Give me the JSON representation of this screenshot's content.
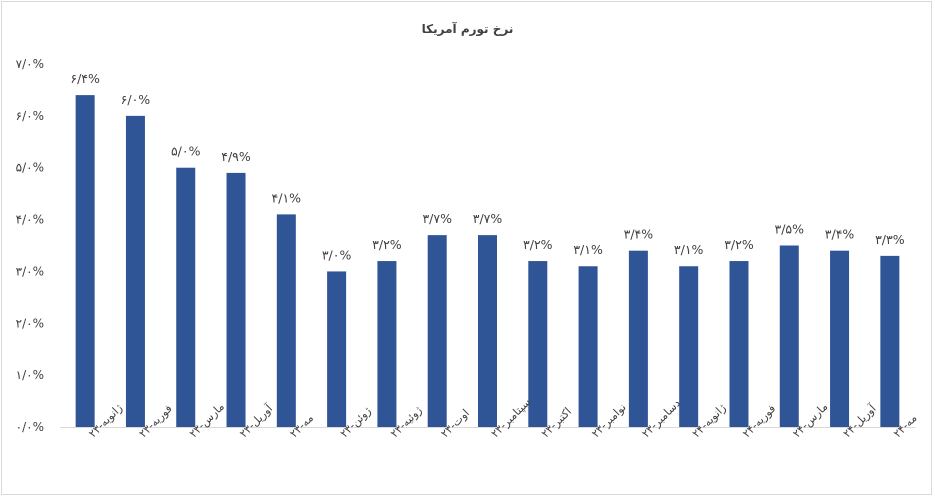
{
  "chart_data": {
    "type": "bar",
    "title": "نرخ تورم آمریکا",
    "xlabel": "",
    "ylabel": "",
    "ylim": [
      0,
      7
    ],
    "y_tick_labels": [
      "۰/۰%",
      "۱/۰%",
      "۲/۰%",
      "۳/۰%",
      "۴/۰%",
      "۵/۰%",
      "۶/۰%",
      "۷/۰%"
    ],
    "grid": false,
    "bar_color": "#2F5597",
    "categories": [
      "ژانویه-۲۳",
      "فوریه-۲۳",
      "مارس-۲۳",
      "آوریل-۲۳",
      "مه-۲۳",
      "ژوئن-۲۳",
      "ژوئیه-۲۳",
      "اوت-۲۳",
      "سپتامبر-۲۳",
      "اکتبر-۲۳",
      "نوامبر-۲۳",
      "دسامبر-۲۳",
      "ژانویه-۲۴",
      "فوریه-۲۴",
      "مارس-۲۴",
      "آوریل-۲۴",
      "مه-۲۴"
    ],
    "values": [
      6.4,
      6.0,
      5.0,
      4.9,
      4.1,
      3.0,
      3.2,
      3.7,
      3.7,
      3.2,
      3.1,
      3.4,
      3.1,
      3.2,
      3.5,
      3.4,
      3.3
    ],
    "data_labels": [
      "۶/۴%",
      "۶/۰%",
      "۵/۰%",
      "۴/۹%",
      "۴/۱%",
      "۳/۰%",
      "۳/۲%",
      "۳/۷%",
      "۳/۷%",
      "۳/۲%",
      "۳/۱%",
      "۳/۴%",
      "۳/۱%",
      "۳/۲%",
      "۳/۵%",
      "۳/۴%",
      "۳/۳%"
    ]
  }
}
